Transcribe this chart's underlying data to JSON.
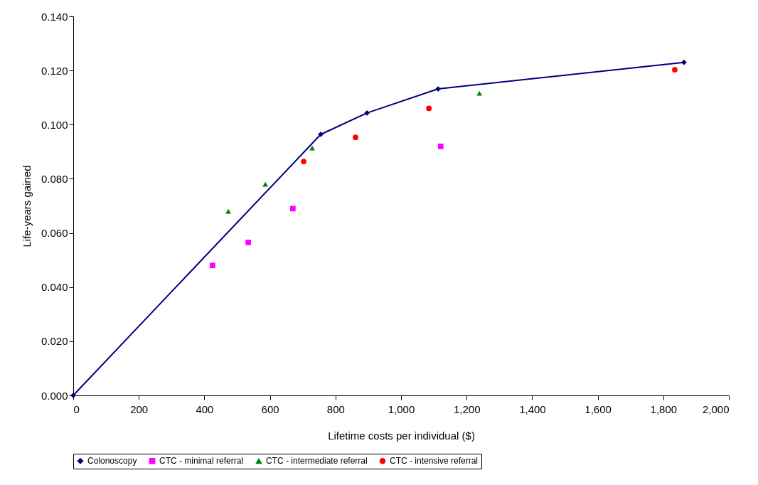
{
  "chart_data": {
    "type": "scatter",
    "xlabel": "Lifetime costs per individual ($)",
    "ylabel": "Life-years gained",
    "xlim": [
      0,
      2000
    ],
    "xticks": [
      0,
      200,
      400,
      600,
      800,
      {
        "value": 1000,
        "label": "1,000"
      },
      {
        "value": 1200,
        "label": "1,200"
      },
      {
        "value": 1400,
        "label": "1,400"
      },
      {
        "value": 1600,
        "label": "1,600"
      },
      {
        "value": 1800,
        "label": "1,800"
      },
      {
        "value": 2000,
        "label": "2,000"
      }
    ],
    "ylim": [
      0,
      0.14
    ],
    "yticks": [
      {
        "value": 0,
        "label": "0.000"
      },
      {
        "value": 0.02,
        "label": "0.020"
      },
      {
        "value": 0.04,
        "label": "0.040"
      },
      {
        "value": 0.06,
        "label": "0.060"
      },
      {
        "value": 0.08,
        "label": "0.080"
      },
      {
        "value": 0.1,
        "label": "0.100"
      },
      {
        "value": 0.12,
        "label": "0.120"
      },
      {
        "value": 0.14,
        "label": "0.140"
      }
    ],
    "grid": false,
    "legend": "bottom",
    "series": [
      {
        "name": "Colonoscopy",
        "type": "line",
        "marker": "diamond",
        "color": "#000080",
        "x": [
          0,
          755,
          896,
          1113,
          1863
        ],
        "values": [
          0,
          0.0964,
          0.1043,
          0.1132,
          0.123
        ]
      },
      {
        "name": "CTC - minimal referral",
        "type": "scatter",
        "marker": "square",
        "color": "#ff00ff",
        "x": [
          425,
          534,
          670,
          1121
        ],
        "values": [
          0.048,
          0.0565,
          0.069,
          0.092
        ]
      },
      {
        "name": "CTC - intermediate referral",
        "type": "scatter",
        "marker": "triangle",
        "color": "#008000",
        "x": [
          473,
          586,
          729,
          1239
        ],
        "values": [
          0.068,
          0.078,
          0.0914,
          0.1116
        ]
      },
      {
        "name": "CTC - intensive referral",
        "type": "scatter",
        "marker": "circle",
        "color": "#ff0000",
        "x": [
          703,
          861,
          1085,
          1835
        ],
        "values": [
          0.0864,
          0.0953,
          0.106,
          0.1203
        ]
      }
    ]
  }
}
